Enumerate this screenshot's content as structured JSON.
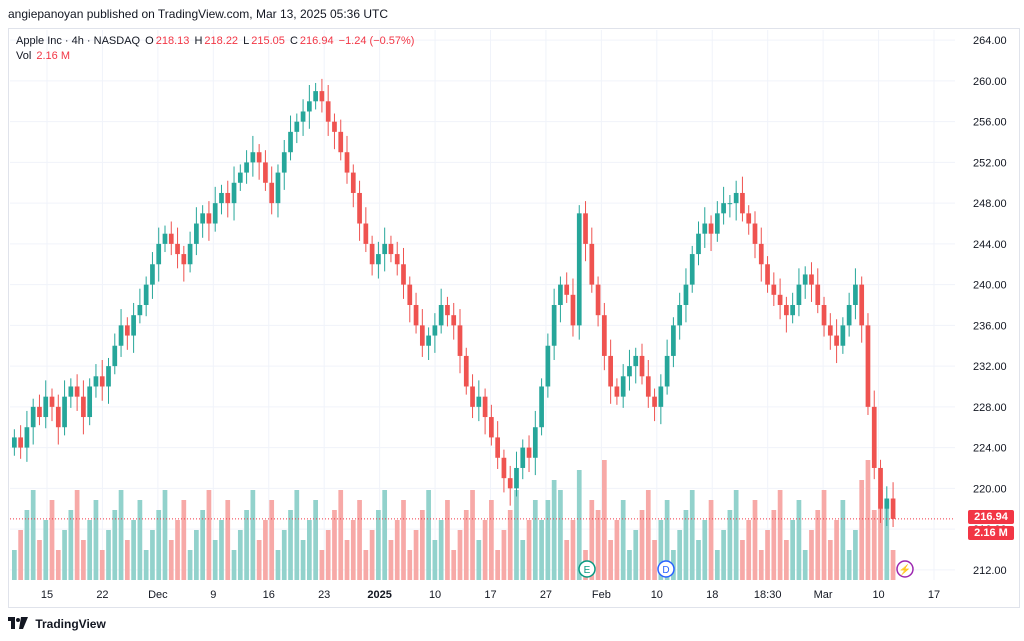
{
  "header": {
    "publisher": "angiepanoyan published on TradingView.com, Mar 13, 2025 05:36 UTC"
  },
  "legend": {
    "symbol": "Apple Inc · 4h · NASDAQ",
    "o_label": "O",
    "o": "218.13",
    "h_label": "H",
    "h": "218.22",
    "l_label": "L",
    "l": "215.05",
    "c_label": "C",
    "c": "216.94",
    "change": "−1.24 (−0.57%)",
    "vol_label": "Vol",
    "vol": "2.16 M"
  },
  "price_tags": {
    "last": "216.94",
    "volume": "2.16 M"
  },
  "footer": {
    "brand": "TradingView"
  },
  "markers": {
    "earnings": "E",
    "dividend": "D",
    "flash": "⚡"
  },
  "colors": {
    "up": "#26a69a",
    "down": "#ef5350",
    "up_vol": "#92d2cc",
    "down_vol": "#f7a9a7",
    "grid": "#f0f3fa"
  },
  "chart_data": {
    "type": "candlestick",
    "y_ticks": [
      "264.00",
      "260.00",
      "256.00",
      "252.00",
      "248.00",
      "244.00",
      "240.00",
      "236.00",
      "232.00",
      "228.00",
      "224.00",
      "220.00",
      "216.00",
      "212.00"
    ],
    "ylim": [
      211,
      265
    ],
    "x_ticks": [
      "15",
      "22",
      "Dec",
      "9",
      "16",
      "23",
      "2025",
      "10",
      "17",
      "27",
      "Feb",
      "10",
      "18",
      "18:30",
      "Mar",
      "10",
      "17"
    ],
    "closes": [
      225,
      224,
      226,
      228,
      227,
      229,
      228,
      226,
      229,
      230,
      229,
      227,
      230,
      231,
      230,
      232,
      234,
      236,
      235,
      237,
      238,
      240,
      242,
      244,
      245,
      244,
      243,
      242,
      244,
      246,
      247,
      246,
      248,
      249,
      248,
      250,
      251,
      252,
      253,
      252,
      250,
      248,
      251,
      253,
      255,
      256,
      257,
      258,
      259,
      258,
      256,
      255,
      253,
      251,
      249,
      246,
      244,
      242,
      243,
      244,
      243,
      242,
      240,
      238,
      236,
      234,
      235,
      236,
      238,
      237,
      236,
      233,
      230,
      228,
      229,
      227,
      225,
      223,
      221,
      220,
      222,
      224,
      223,
      226,
      230,
      234,
      238,
      240,
      239,
      236,
      247,
      244,
      240,
      237,
      233,
      230,
      229,
      231,
      232,
      233,
      231,
      229,
      228,
      230,
      233,
      236,
      238,
      240,
      243,
      245,
      246,
      245,
      247,
      248,
      248,
      249,
      247,
      246,
      244,
      242,
      240,
      239,
      238,
      237,
      238,
      240,
      241,
      240,
      238,
      236,
      235,
      234,
      236,
      238,
      240,
      236,
      228,
      222,
      218,
      219,
      217
    ],
    "volume_ylim": [
      0,
      10
    ]
  }
}
